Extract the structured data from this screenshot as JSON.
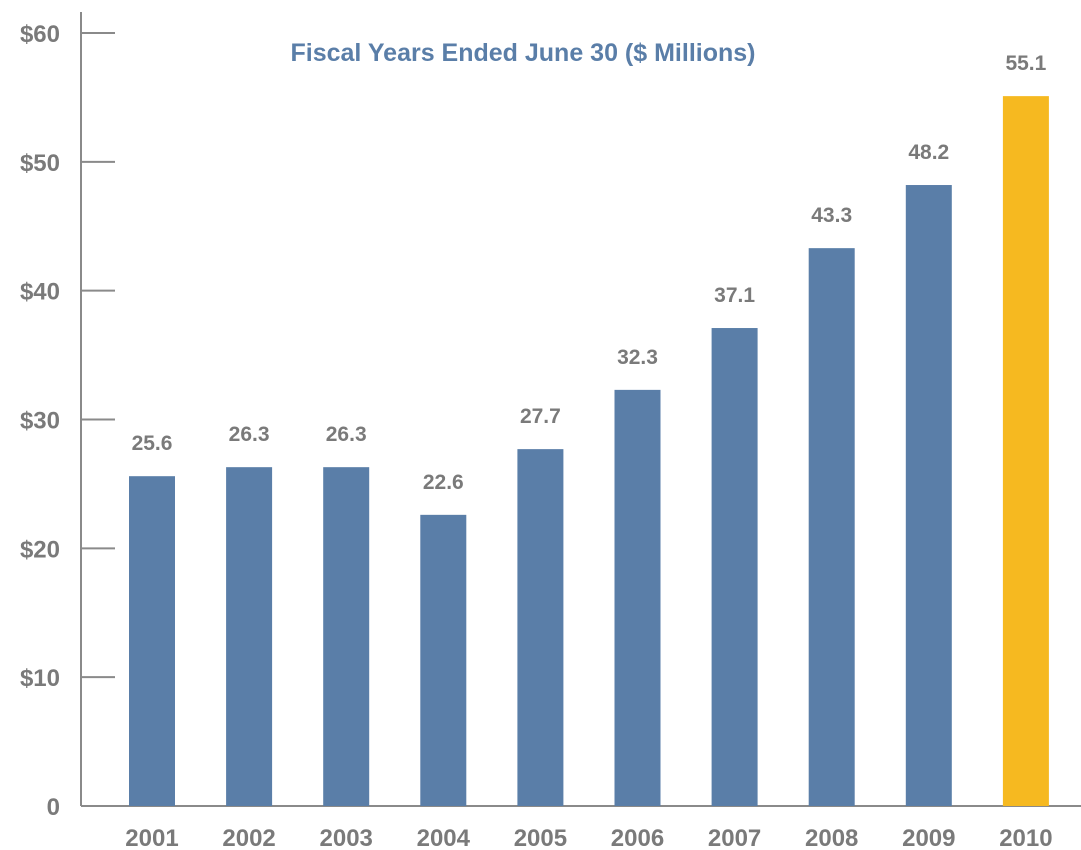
{
  "chart_data": {
    "type": "bar",
    "title": "Fiscal Years Ended June 30 ($ Millions)",
    "xlabel": "",
    "ylabel": "",
    "categories": [
      "2001",
      "2002",
      "2003",
      "2004",
      "2005",
      "2006",
      "2007",
      "2008",
      "2009",
      "2010"
    ],
    "values": [
      25.6,
      26.3,
      26.3,
      22.6,
      27.7,
      32.3,
      37.1,
      43.3,
      48.2,
      55.1
    ],
    "data_labels": [
      "25.6",
      "26.3",
      "26.3",
      "22.6",
      "27.7",
      "32.3",
      "37.1",
      "43.3",
      "48.2",
      "55.1"
    ],
    "ylim": [
      0,
      60
    ],
    "yticks": [
      0,
      10,
      20,
      30,
      40,
      50,
      60
    ],
    "ytick_labels": [
      "0",
      "$10",
      "$20",
      "$30",
      "$40",
      "$50",
      "$60"
    ],
    "grid": false,
    "highlight_category": "2010",
    "colors": {
      "bar": "#5a7ea8",
      "highlight": "#f6b920",
      "title": "#5a7ea8",
      "text": "#7a7a7a",
      "axis": "#8a8a8a"
    }
  }
}
